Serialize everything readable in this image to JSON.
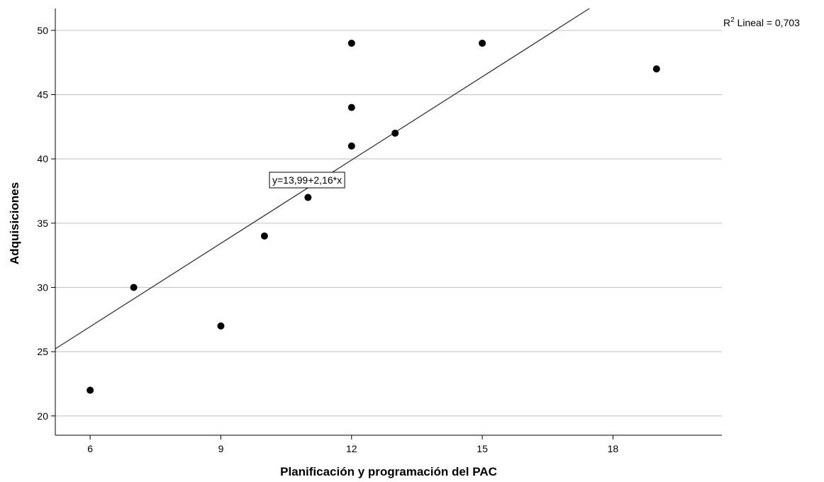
{
  "chart_data": {
    "type": "scatter",
    "title": "",
    "xlabel": "Planificación y programación del PAC",
    "ylabel": "Adquisiciones",
    "xlim": [
      5.2,
      20.5
    ],
    "ylim": [
      18.5,
      51.7
    ],
    "xticks": [
      6,
      9,
      12,
      15,
      18
    ],
    "yticks": [
      20,
      25,
      30,
      35,
      40,
      45,
      50
    ],
    "grid": "horizontal",
    "points": [
      {
        "x": 6,
        "y": 22
      },
      {
        "x": 7,
        "y": 30
      },
      {
        "x": 9,
        "y": 27
      },
      {
        "x": 10,
        "y": 34
      },
      {
        "x": 11,
        "y": 37
      },
      {
        "x": 12,
        "y": 41
      },
      {
        "x": 12,
        "y": 44
      },
      {
        "x": 12,
        "y": 49
      },
      {
        "x": 13,
        "y": 42
      },
      {
        "x": 15,
        "y": 49
      },
      {
        "x": 19,
        "y": 47
      }
    ],
    "fit_line": {
      "intercept": 13.99,
      "slope": 2.16
    },
    "fit_label": "y=13,99+2,16*x",
    "r2_label": {
      "prefix": "R",
      "sup": "2",
      "suffix": " Lineal = 0,703"
    }
  }
}
